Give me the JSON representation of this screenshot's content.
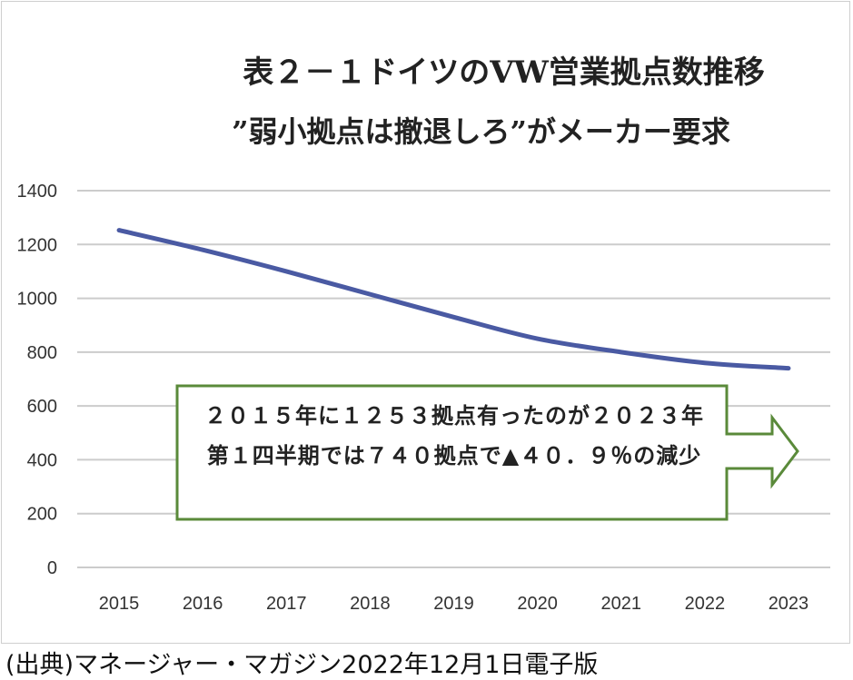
{
  "chart_data": {
    "type": "line",
    "title": "表２－１ドイツのVW営業拠点数推移",
    "subtitle": "”弱小拠点は撤退しろ”がメーカー要求",
    "categories": [
      "2015",
      "2016",
      "2017",
      "2018",
      "2019",
      "2020",
      "2021",
      "2022",
      "2023"
    ],
    "series": [
      {
        "values": [
          1253,
          1180,
          1100,
          1015,
          930,
          850,
          800,
          760,
          740
        ],
        "color": "#4a5aa3"
      }
    ],
    "ylim": [
      0,
      1400
    ],
    "yticks": [
      0,
      200,
      400,
      600,
      800,
      1000,
      1200,
      1400
    ],
    "grid": true,
    "legend": "none"
  },
  "annotation": {
    "line1": "２０１５年に１２５３拠点有ったのが２０２３年",
    "line2": "第１四半期では７４０拠点で▲４０．９％の減少",
    "border_color": "#5a8a3a"
  },
  "source": "(出典)マネージャー・マガジン2022年12月1日電子版"
}
